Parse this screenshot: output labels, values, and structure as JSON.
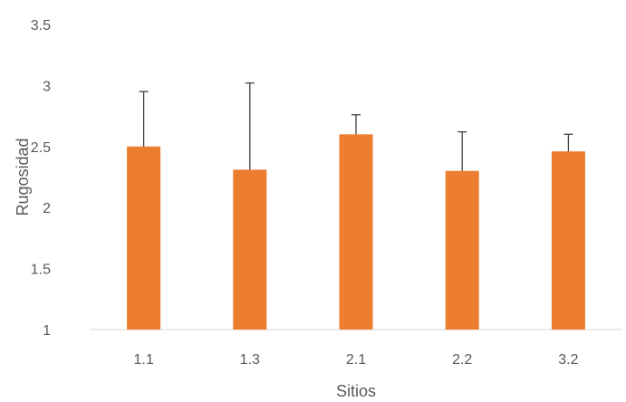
{
  "chart_data": {
    "type": "bar",
    "categories": [
      "1.1",
      "1.3",
      "2.1",
      "2.2",
      "3.2"
    ],
    "values": [
      2.5,
      2.31,
      2.6,
      2.3,
      2.46
    ],
    "error_upper": [
      0.45,
      0.71,
      0.16,
      0.32,
      0.14
    ],
    "xlabel": "Sitios",
    "ylabel": "Rugosidad",
    "ylim": [
      1,
      3.5
    ],
    "yticks": [
      "1",
      "1.5",
      "2",
      "2.5",
      "3",
      "3.5"
    ],
    "grid": false,
    "bar_color": "#ED7D31",
    "error_color": "#404040",
    "axis_color": "#D9D9D9"
  }
}
